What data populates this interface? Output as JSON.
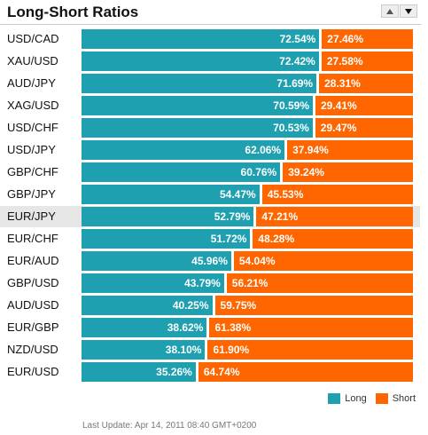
{
  "title": "Long-Short Ratios",
  "colors": {
    "long": "#1ea0b0",
    "short": "#ff6600"
  },
  "controls": {
    "sort_up_icon": "triangle-up",
    "sort_down_icon": "triangle-down"
  },
  "rows": [
    {
      "pair": "USD/CAD",
      "long": "72.54%",
      "short": "27.46%",
      "long_pct": 72.54
    },
    {
      "pair": "XAU/USD",
      "long": "72.42%",
      "short": "27.58%",
      "long_pct": 72.42
    },
    {
      "pair": "AUD/JPY",
      "long": "71.69%",
      "short": "28.31%",
      "long_pct": 71.69
    },
    {
      "pair": "XAG/USD",
      "long": "70.59%",
      "short": "29.41%",
      "long_pct": 70.59
    },
    {
      "pair": "USD/CHF",
      "long": "70.53%",
      "short": "29.47%",
      "long_pct": 70.53
    },
    {
      "pair": "USD/JPY",
      "long": "62.06%",
      "short": "37.94%",
      "long_pct": 62.06
    },
    {
      "pair": "GBP/CHF",
      "long": "60.76%",
      "short": "39.24%",
      "long_pct": 60.76
    },
    {
      "pair": "GBP/JPY",
      "long": "54.47%",
      "short": "45.53%",
      "long_pct": 54.47
    },
    {
      "pair": "EUR/JPY",
      "long": "52.79%",
      "short": "47.21%",
      "long_pct": 52.79,
      "highlighted": true
    },
    {
      "pair": "EUR/CHF",
      "long": "51.72%",
      "short": "48.28%",
      "long_pct": 51.72
    },
    {
      "pair": "EUR/AUD",
      "long": "45.96%",
      "short": "54.04%",
      "long_pct": 45.96
    },
    {
      "pair": "GBP/USD",
      "long": "43.79%",
      "short": "56.21%",
      "long_pct": 43.79
    },
    {
      "pair": "AUD/USD",
      "long": "40.25%",
      "short": "59.75%",
      "long_pct": 40.25
    },
    {
      "pair": "EUR/GBP",
      "long": "38.62%",
      "short": "61.38%",
      "long_pct": 38.62
    },
    {
      "pair": "NZD/USD",
      "long": "38.10%",
      "short": "61.90%",
      "long_pct": 38.1
    },
    {
      "pair": "EUR/USD",
      "long": "35.26%",
      "short": "64.74%",
      "long_pct": 35.26
    }
  ],
  "legend": {
    "long_label": "Long",
    "short_label": "Short"
  },
  "footer": {
    "last_update": "Last Update: Apr 14, 2011 08:40 GMT+0200"
  }
}
